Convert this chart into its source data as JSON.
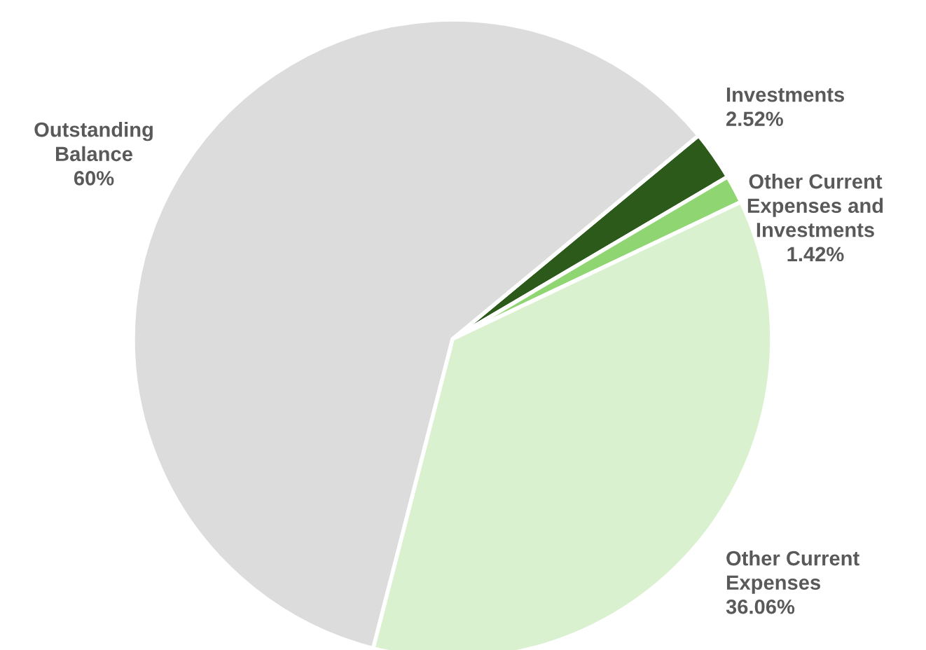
{
  "chart_data": {
    "type": "pie",
    "categories": [
      "Investments",
      "Other Current\nExpenses and\nInvestments",
      "Other Current\nExpenses",
      "Outstanding\nBalance"
    ],
    "values": [
      2.52,
      1.42,
      36.06,
      60
    ],
    "value_labels": [
      "2.52%",
      "1.42%",
      "36.06%",
      "60%"
    ],
    "colors": [
      "#2b5a1b",
      "#8fd672",
      "#daf1d0",
      "#dcdcdc"
    ],
    "legend": false
  }
}
